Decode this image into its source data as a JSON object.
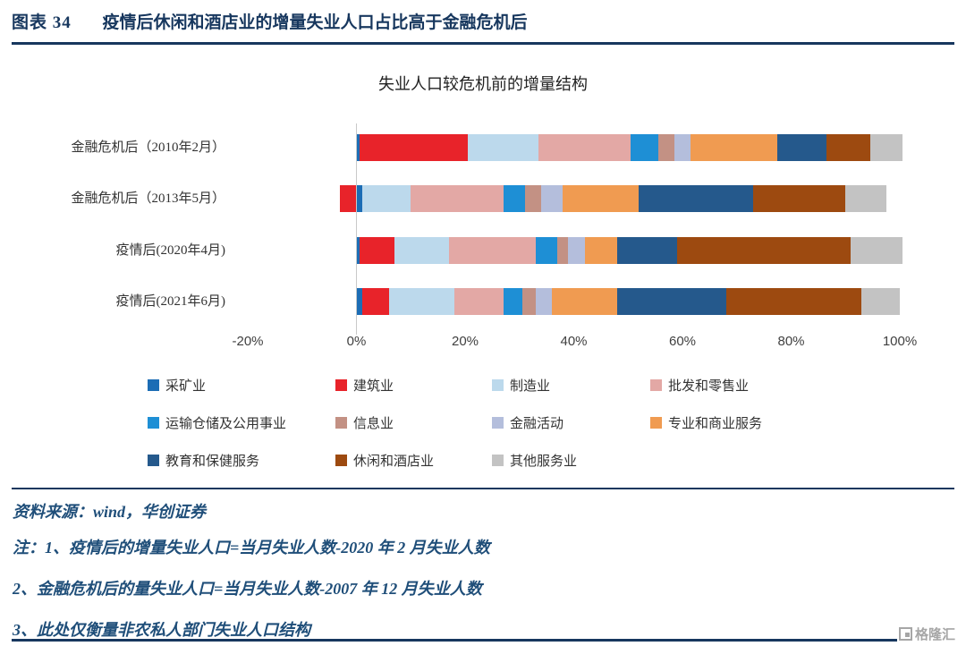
{
  "header": {
    "label": "图表 34",
    "title": "疫情后休闲和酒店业的增量失业人口占比高于金融危机后"
  },
  "chart_data": {
    "type": "bar",
    "orientation": "horizontal",
    "stacked": true,
    "title": "失业人口较危机前的增量结构",
    "categories": [
      "金融危机后（2010年2月）",
      "金融危机后（2013年5月）",
      "疫情后(2020年4月)",
      "疫情后(2021年6月)"
    ],
    "series": [
      {
        "name": "采矿业",
        "color": "#1C6DB5",
        "values": [
          0.5,
          1,
          0.5,
          1
        ]
      },
      {
        "name": "建筑业",
        "color": "#E8232A",
        "values": [
          20,
          -3,
          6.5,
          5
        ]
      },
      {
        "name": "制造业",
        "color": "#BCD9EC",
        "values": [
          13,
          9,
          10,
          12
        ]
      },
      {
        "name": "批发和零售业",
        "color": "#E3A8A5",
        "values": [
          17,
          17,
          16,
          9
        ]
      },
      {
        "name": "运输仓储及公用事业",
        "color": "#1E8FD5",
        "values": [
          5,
          4,
          4,
          3.5
        ]
      },
      {
        "name": "信息业",
        "color": "#C39184",
        "values": [
          3,
          3,
          2,
          2.5
        ]
      },
      {
        "name": "金融活动",
        "color": "#B4BEDC",
        "values": [
          3,
          4,
          3,
          3
        ]
      },
      {
        "name": "专业和商业服务",
        "color": "#F09B51",
        "values": [
          16,
          14,
          6,
          12
        ]
      },
      {
        "name": "教育和保健服务",
        "color": "#25598C",
        "values": [
          9,
          21,
          11,
          20
        ]
      },
      {
        "name": "休闲和酒店业",
        "color": "#9D4A10",
        "values": [
          8,
          17,
          32,
          25
        ]
      },
      {
        "name": "其他服务业",
        "color": "#C3C3C3",
        "values": [
          6,
          7.5,
          9.5,
          7
        ]
      }
    ],
    "xlim": [
      -20,
      100
    ],
    "xticks": [
      -20,
      0,
      20,
      40,
      60,
      80,
      100
    ],
    "xtick_labels": [
      "-20%",
      "0%",
      "20%",
      "40%",
      "60%",
      "80%",
      "100%"
    ],
    "legend_position": "bottom",
    "grid": false
  },
  "footer": {
    "source": "资料来源：wind，华创证券",
    "notes": [
      "注：1、疫情后的增量失业人口=当月失业人数-2020 年 2 月失业人数",
      "2、金融危机后的量失业人口=当月失业人数-2007 年 12 月失业人数",
      "3、此处仅衡量非农私人部门失业人口结构"
    ],
    "watermark": "格隆汇"
  }
}
